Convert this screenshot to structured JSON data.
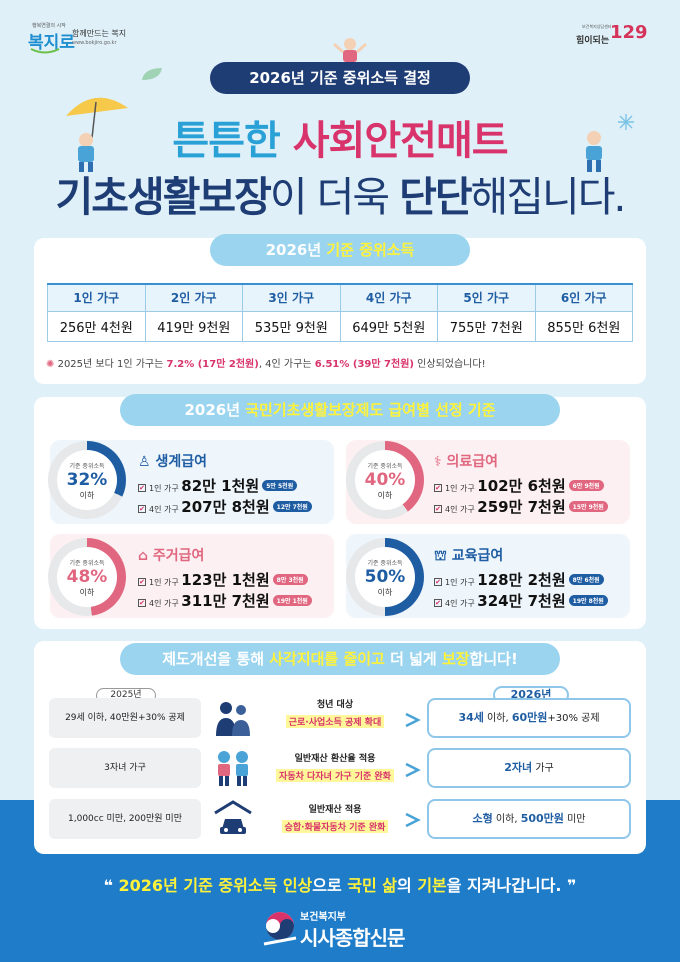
{
  "header": {
    "left_logo_small": "행복연결의 시작",
    "left_logo_brand": "복지로",
    "left_slogan": "함께만드는 복지",
    "left_url": "www.bokjiro.go.kr",
    "right_logo_small": "보건복지상담센터",
    "right_logo_text": "힘이되는",
    "right_logo_number": "129",
    "top_pill": "2026년 기준 중위소득 결정",
    "headline1_a": "튼튼한 ",
    "headline1_b": "사회안전매트",
    "headline2_a": "기초생활보장",
    "headline2_b": "이 더욱 ",
    "headline2_c": "단단",
    "headline2_d": "해집니다."
  },
  "income_section": {
    "title_a": "2026년 ",
    "title_b": "기준 중위소득",
    "columns": [
      "1인 가구",
      "2인 가구",
      "3인 가구",
      "4인 가구",
      "5인 가구",
      "6인 가구"
    ],
    "values": [
      "256만 4천원",
      "419만 9천원",
      "535만 9천원",
      "649만 5천원",
      "755만 7천원",
      "855만 6천원"
    ],
    "note_a": "2025년 보다 1인 가구는 ",
    "note_b": "7.2% (17만 2천원)",
    "note_c": ", 4인 가구는 ",
    "note_d": "6.51% (39만 7천원)",
    "note_e": " 인상되었습니다!"
  },
  "benefits_section": {
    "title_a": "2026년 ",
    "title_b": "국민기초생활보장제도 급여별 선정 기준",
    "caption": "기준 중위소득",
    "below": "이하",
    "household1": "1인 가구",
    "household4": "4인 가구",
    "items": [
      {
        "name": "생계급여",
        "pct": "32%",
        "pct_value": 32,
        "one_a": "82만 ",
        "one_b": "1천원",
        "one_tag": "5만 5천원",
        "four_a": "207만 ",
        "four_b": "8천원",
        "four_tag": "12만 7천원",
        "color": "#1f5da3"
      },
      {
        "name": "의료급여",
        "pct": "40%",
        "pct_value": 40,
        "one_a": "102만 ",
        "one_b": "6천원",
        "one_tag": "6만 9천원",
        "four_a": "259만 ",
        "four_b": "7천원",
        "four_tag": "15만 9천원",
        "color": "#e0677f"
      },
      {
        "name": "주거급여",
        "pct": "48%",
        "pct_value": 48,
        "one_a": "123만 ",
        "one_b": "1천원",
        "one_tag": "8만 3천원",
        "four_a": "311만 ",
        "four_b": "7천원",
        "four_tag": "19만 1천원",
        "color": "#e0677f"
      },
      {
        "name": "교육급여",
        "pct": "50%",
        "pct_value": 50,
        "one_a": "128만 ",
        "one_b": "2천원",
        "one_tag": "8만 6천원",
        "four_a": "324만 ",
        "four_b": "7천원",
        "four_tag": "19만 8천원",
        "color": "#1f5da3"
      }
    ]
  },
  "reform_section": {
    "title_a": "제도개선을 통해 ",
    "title_b": "사각지대를 줄이고",
    "title_c": " 더 넓게 ",
    "title_d": "보장",
    "title_e": "합니다!",
    "year_old": "2025년",
    "year_new": "2026년",
    "rows": [
      {
        "old": "29세 이하, 40만원+30% 공제",
        "mid_a": "청년 대상",
        "mid_b": "근로·사업소득 공제 확대",
        "new_a": "34세",
        "new_b": " 이하, ",
        "new_c": "60만원",
        "new_d": "+30% 공제"
      },
      {
        "old": "3자녀 가구",
        "mid_a": "일반재산 환산율 적용",
        "mid_b": "자동차 다자녀 가구 기준 완화",
        "new_a": "2자녀",
        "new_b": " 가구",
        "new_c": "",
        "new_d": ""
      },
      {
        "old": "1,000cc 미만, 200만원 미만",
        "mid_a": "일반재산 적용",
        "mid_b": "승합·화물자동차 기준 완화",
        "new_a": "소형",
        "new_b": " 이하, ",
        "new_c": "500만원",
        "new_d": " 미만"
      }
    ]
  },
  "footer": {
    "slogan_a": "2026년 기준 중위소득 인상",
    "slogan_b": "으로 ",
    "slogan_c": "국민 삶",
    "slogan_d": "의 ",
    "slogan_e": "기본",
    "slogan_f": "을 지켜나갑니다.",
    "ministry": "보건복지부",
    "newspaper": "시사종합신문"
  }
}
